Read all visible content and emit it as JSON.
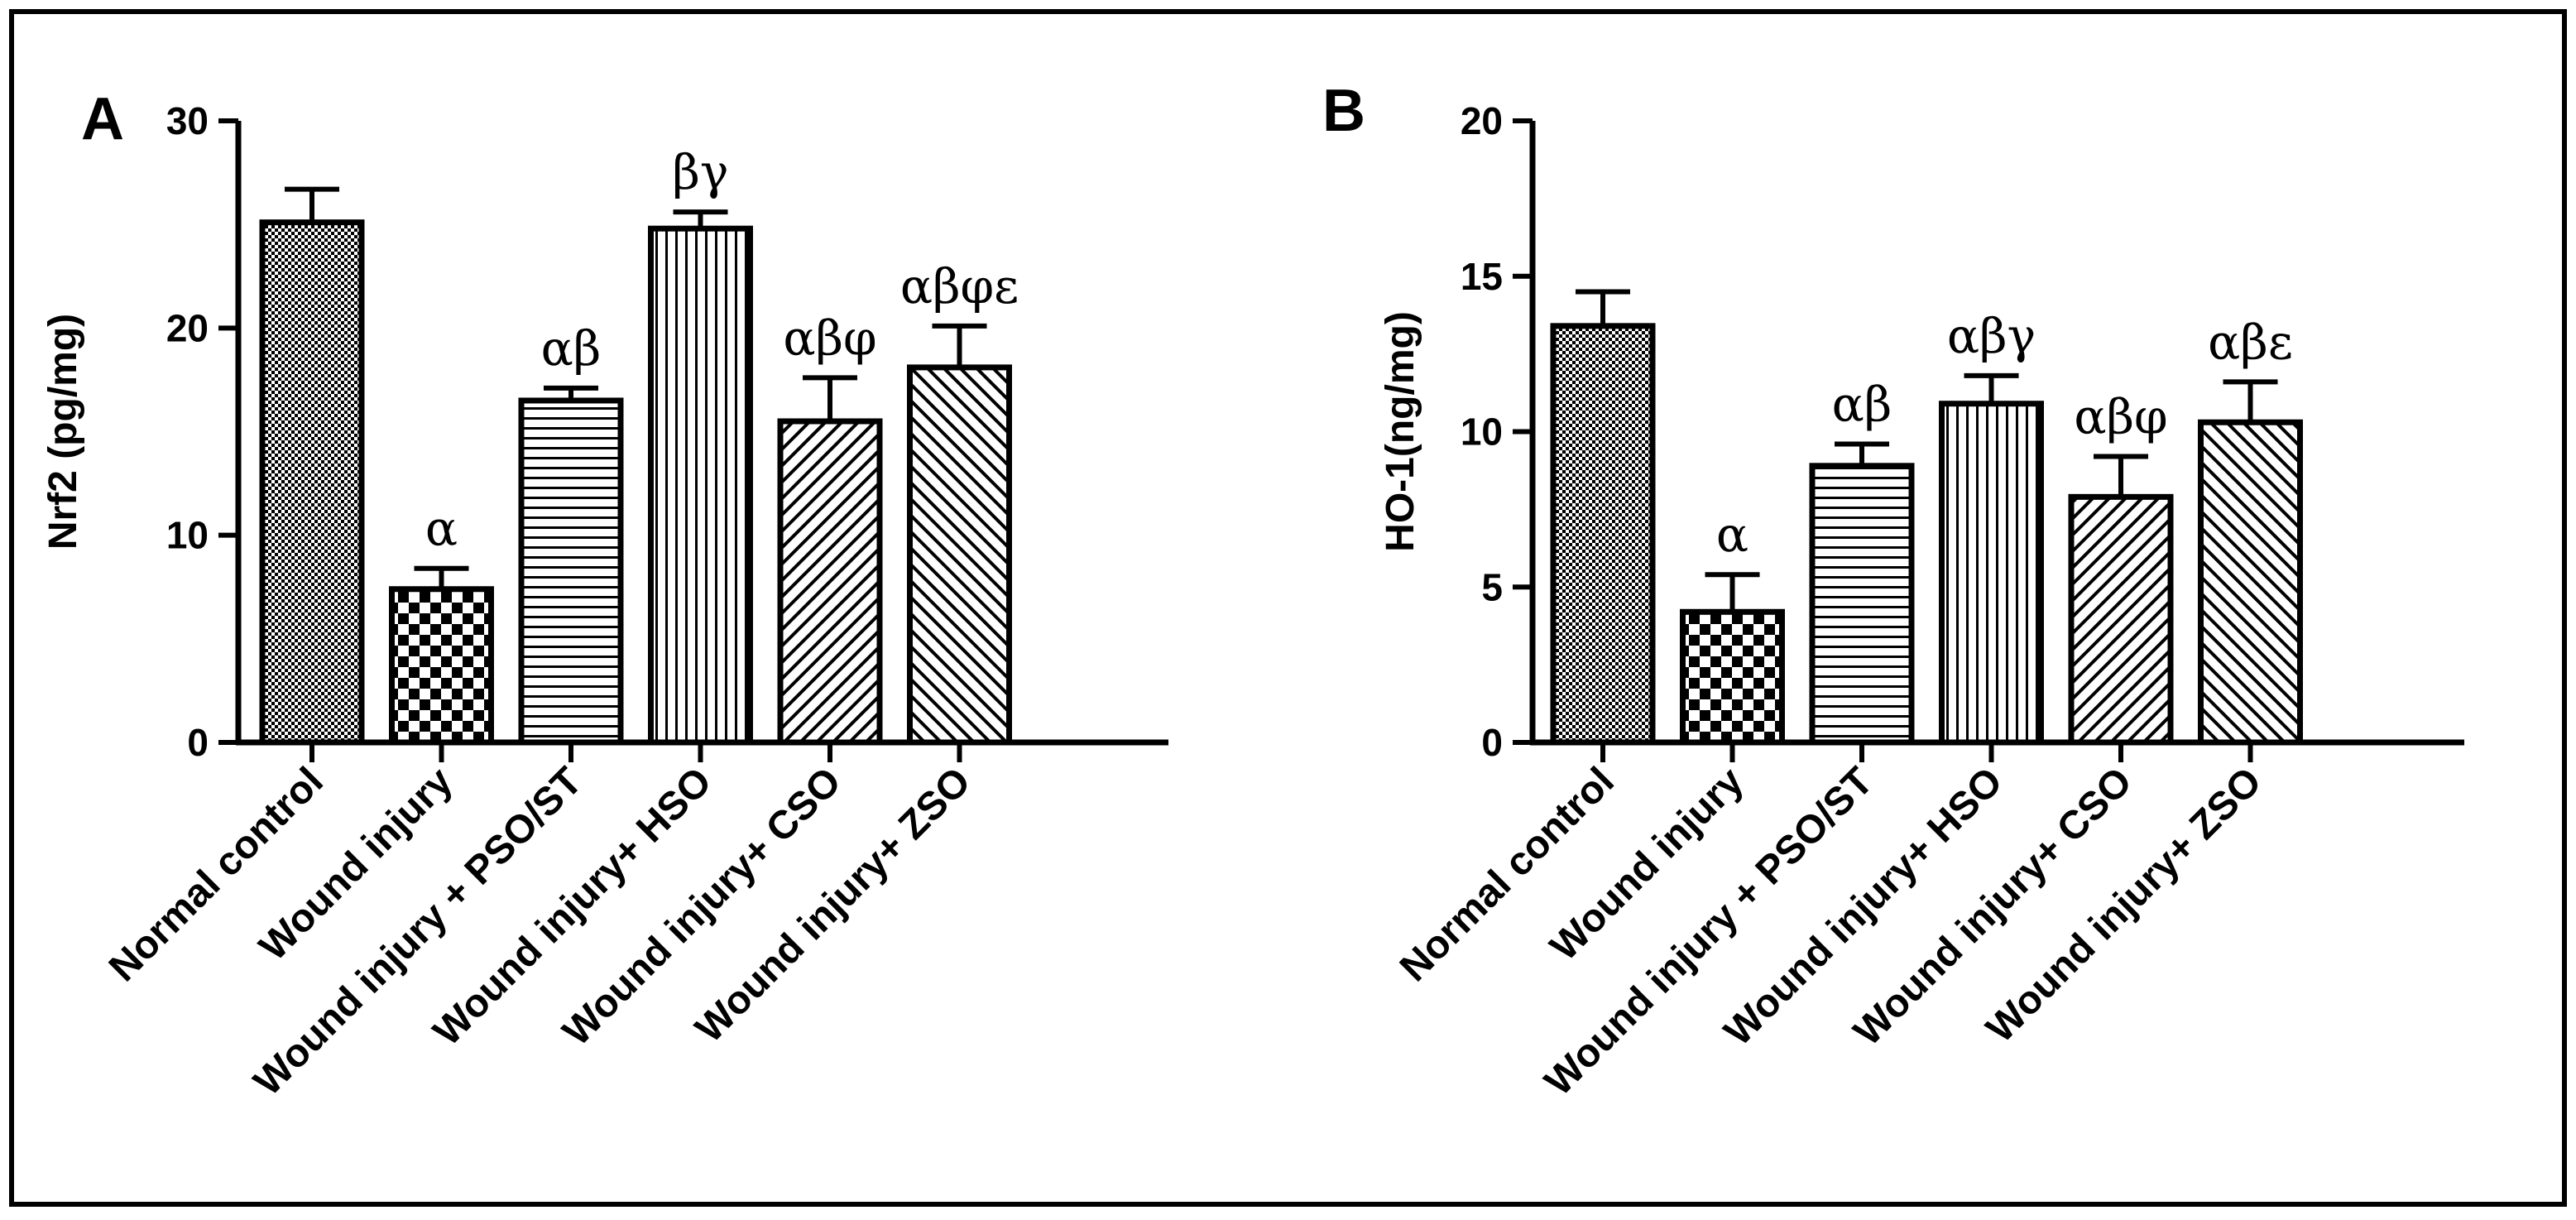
{
  "chart_data": [
    {
      "type": "bar",
      "panel": "A",
      "ylabel": "Nrf2 (pg/mg)",
      "ylim": [
        0,
        30
      ],
      "yticks": [
        0,
        10,
        20,
        30
      ],
      "categories": [
        "Normal control",
        "Wound injury",
        "Wound injury  + PSO/ST",
        "Wound injury+ HSO",
        "Wound injury+ CSO",
        "Wound injury+ ZSO"
      ],
      "values": [
        25.1,
        7.4,
        16.5,
        24.8,
        15.5,
        18.1
      ],
      "errors": [
        1.6,
        1.0,
        0.6,
        0.8,
        2.1,
        2.0
      ],
      "annotations": [
        "",
        "α",
        "αβ",
        "βγ",
        "αβφ",
        "αβφε"
      ],
      "patterns": [
        "fine-check",
        "checker",
        "horizontal",
        "vertical",
        "diag-right",
        "diag-left"
      ]
    },
    {
      "type": "bar",
      "panel": "B",
      "ylabel": "HO-1(ng/mg)",
      "ylim": [
        0,
        20
      ],
      "yticks": [
        0,
        5,
        10,
        15,
        20
      ],
      "categories": [
        "Normal control",
        "Wound injury",
        "Wound injury  + PSO/ST",
        "Wound injury+ HSO",
        "Wound injury+ CSO",
        "Wound injury+ ZSO"
      ],
      "values": [
        13.4,
        4.2,
        8.9,
        10.9,
        7.9,
        10.3
      ],
      "errors": [
        1.1,
        1.2,
        0.7,
        0.9,
        1.3,
        1.3
      ],
      "annotations": [
        "",
        "α",
        "αβ",
        "αβγ",
        "αβφ",
        "αβε"
      ],
      "patterns": [
        "fine-check",
        "checker",
        "horizontal",
        "vertical",
        "diag-right",
        "diag-left"
      ]
    }
  ]
}
